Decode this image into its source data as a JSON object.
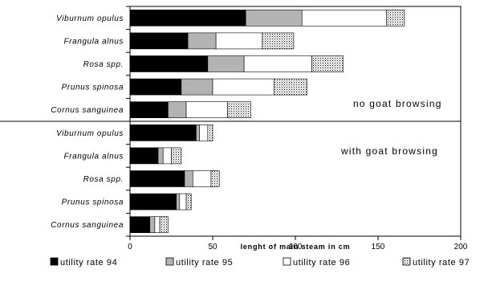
{
  "chart_data": {
    "type": "bar",
    "orientation": "horizontal",
    "stacked": true,
    "xlabel": "lenght of main steam in cm",
    "xlim": [
      0,
      200
    ],
    "xticks": [
      0,
      50,
      100,
      150,
      200
    ],
    "grid": false,
    "legend_position": "bottom",
    "series_styles": [
      {
        "name": "utility rate 94",
        "color": "#000000",
        "pattern": "solid"
      },
      {
        "name": "utility rate 95",
        "color": "#b3b3b3",
        "pattern": "solid"
      },
      {
        "name": "utility rate 96",
        "color": "#ffffff",
        "pattern": "solid"
      },
      {
        "name": "utility rate 97",
        "color": "#cccccc",
        "pattern": "dots"
      }
    ],
    "panels": [
      {
        "annotation": "no goat browsing",
        "categories": [
          "Viburnum opulus",
          "Frangula alnus",
          "Rosa spp.",
          "Prunus spinosa",
          "Cornus sanguinea"
        ],
        "values": [
          [
            70,
            34,
            51,
            11
          ],
          [
            35,
            17,
            28,
            19
          ],
          [
            47,
            22,
            41,
            19
          ],
          [
            31,
            19,
            37,
            20
          ],
          [
            23,
            11,
            25,
            14
          ]
        ]
      },
      {
        "annotation": "with goat browsing",
        "categories": [
          "Viburnum opulus",
          "Frangula alnus",
          "Rosa spp.",
          "Prunus spinosa",
          "Cornus sanguinea"
        ],
        "values": [
          [
            40,
            2,
            5,
            3
          ],
          [
            17,
            3,
            5,
            6
          ],
          [
            33,
            5,
            11,
            5
          ],
          [
            28,
            2,
            4,
            3
          ],
          [
            12,
            3,
            3,
            5
          ]
        ]
      }
    ]
  }
}
